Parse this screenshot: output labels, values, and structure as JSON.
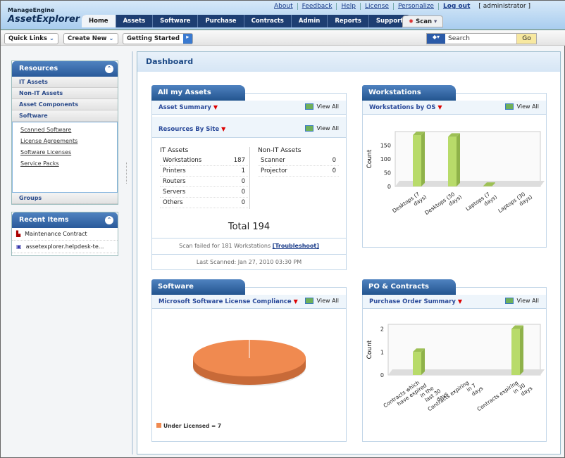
{
  "header": {
    "logo_top": "ManageEngine",
    "logo_main": "AssetExplorer",
    "links": [
      "About",
      "Feedback",
      "Help",
      "License",
      "Personalize",
      "Log out"
    ],
    "user": "[ administrator ]",
    "tabs": [
      "Home",
      "Assets",
      "Software",
      "Purchase",
      "Contracts",
      "Admin",
      "Reports",
      "Support"
    ],
    "scan": "Scan"
  },
  "toolbar": {
    "quick_links": "Quick Links",
    "create_new": "Create New",
    "getting_started": "Getting Started",
    "search_placeholder": "Search",
    "go": "Go"
  },
  "sidebar": {
    "resources_title": "Resources",
    "items": [
      "IT Assets",
      "Non-IT Assets",
      "Asset Components",
      "Software"
    ],
    "software_links": [
      "Scanned Software",
      "License Agreements",
      "Software Licenses",
      "Service Packs"
    ],
    "groups": "Groups",
    "recent_title": "Recent Items",
    "recent": [
      "Maintenance Contract",
      "assetexplorer.helpdesk-te..."
    ]
  },
  "dashboard": {
    "title": "Dashboard",
    "assets": {
      "title": "All my Assets",
      "summary": "Asset Summary",
      "by_site": "Resources By Site",
      "view_all": "View All",
      "it_title": "IT Assets",
      "it": [
        [
          "Workstations",
          "187"
        ],
        [
          "Printers",
          "1"
        ],
        [
          "Routers",
          "0"
        ],
        [
          "Servers",
          "0"
        ],
        [
          "Others",
          "0"
        ]
      ],
      "nonit_title": "Non-IT Assets",
      "nonit": [
        [
          "Scanner",
          "0"
        ],
        [
          "Projector",
          "0"
        ]
      ],
      "total": "Total 194",
      "scan_failed": "Scan failed for 181 Workstations",
      "troubleshoot": "[Troubleshoot]",
      "last_scanned": "Last Scanned: Jan 27, 2010 03:30 PM"
    },
    "workstations": {
      "title": "Workstations",
      "sub": "Workstations by OS",
      "view_all": "View All"
    },
    "software": {
      "title": "Software",
      "sub": "Microsoft Software License Compliance",
      "view_all": "View All",
      "legend": "Under Licensed = 7"
    },
    "po": {
      "title": "PO & Contracts",
      "sub": "Purchase Order Summary",
      "view_all": "View All"
    }
  },
  "chart_data": [
    {
      "type": "bar",
      "title": "Workstations by OS",
      "ylabel": "Count",
      "categories": [
        "Desktops (7 days)",
        "Desktops (30 days)",
        "Laptops (7 days)",
        "Laptops (30 days)"
      ],
      "values": [
        187,
        181,
        2,
        0
      ],
      "ylim": [
        0,
        200
      ],
      "yticks": [
        0,
        50,
        100,
        150
      ],
      "color": "#b8db6a"
    },
    {
      "type": "pie",
      "title": "Microsoft Software License Compliance",
      "labels": [
        "Under Licensed"
      ],
      "values": [
        7
      ],
      "color": "#f08a50"
    },
    {
      "type": "bar",
      "title": "Purchase Order Summary",
      "ylabel": "Count",
      "categories": [
        "Contracts which have expired in the last 30 days",
        "Contracts expiring in 7 days",
        "Contracts expiring in 30 days"
      ],
      "values": [
        1,
        0,
        2
      ],
      "ylim": [
        0,
        2.2
      ],
      "yticks": [
        0,
        1,
        2
      ],
      "color": "#b8db6a"
    }
  ]
}
